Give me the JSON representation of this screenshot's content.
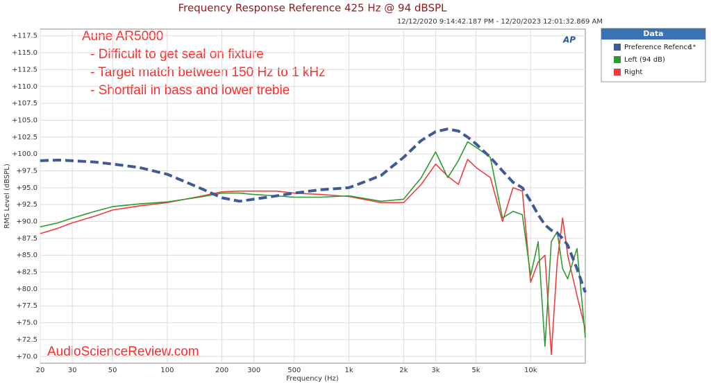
{
  "chart_data": {
    "type": "line",
    "title": "Frequency Response Reference 425 Hz @ 94 dBSPL",
    "subtitle": "12/12/2020 9:14:42.187 PM - 12/20/2023 12:01:32.869 AM",
    "x_label": "Frequency (Hz)",
    "y_label": "RMS Level (dBSPL)",
    "annotations": [
      "Aune AR5000",
      "- Difficult to get seal on fixture",
      "- Target match between 150 Hz to 1 kHz",
      "- Shortfall in bass and lower treble"
    ],
    "watermark": "AudioScienceReview.com",
    "logo": "AP",
    "legend_title": "Data",
    "legend": "outside-right",
    "log_x": true,
    "grid": true,
    "xlim": [
      20,
      20000
    ],
    "ylim": [
      69,
      118.5
    ],
    "xticks": [
      20,
      30,
      50,
      100,
      200,
      300,
      500,
      {
        "value": 1000,
        "label": "1k"
      },
      {
        "value": 2000,
        "label": "2k"
      },
      {
        "value": 3000,
        "label": "3k"
      },
      {
        "value": 5000,
        "label": "5k"
      },
      {
        "value": 10000,
        "label": "10k"
      }
    ],
    "yticks": [
      {
        "value": 70,
        "label": "+70.0"
      },
      {
        "value": 72.5,
        "label": "+72.5"
      },
      {
        "value": 75,
        "label": "+75.0"
      },
      {
        "value": 77.5,
        "label": "+77.5"
      },
      {
        "value": 80,
        "label": "+80.0"
      },
      {
        "value": 82.5,
        "label": "+82.5"
      },
      {
        "value": 85,
        "label": "+85.0"
      },
      {
        "value": 87.5,
        "label": "+87.5"
      },
      {
        "value": 90,
        "label": "+90.0"
      },
      {
        "value": 92.5,
        "label": "+92.5"
      },
      {
        "value": 95,
        "label": "+95.0"
      },
      {
        "value": 97.5,
        "label": "+97.5"
      },
      {
        "value": 100,
        "label": "+100.0"
      },
      {
        "value": 102.5,
        "label": "+102.5"
      },
      {
        "value": 105,
        "label": "+105.0"
      },
      {
        "value": 107.5,
        "label": "+107.5"
      },
      {
        "value": 110,
        "label": "+110.0"
      },
      {
        "value": 112.5,
        "label": "+112.5"
      },
      {
        "value": 115,
        "label": "+115.0"
      },
      {
        "value": 117.5,
        "label": "+117.5"
      }
    ],
    "x": [
      20,
      25,
      30,
      40,
      50,
      70,
      100,
      150,
      200,
      250,
      300,
      400,
      500,
      700,
      1000,
      1500,
      2000,
      2500,
      3000,
      3500,
      4000,
      4500,
      5000,
      6000,
      7000,
      8000,
      9000,
      10000,
      11000,
      12000,
      13000,
      14000,
      15000,
      16000,
      18000,
      20000
    ],
    "series": [
      {
        "name": "Preference Refence",
        "note": "1*",
        "color": "#3f5a96",
        "dash": true,
        "values": [
          99,
          99.1,
          99,
          98.8,
          98.5,
          98,
          97,
          95,
          93.5,
          93,
          93.3,
          93.8,
          94.2,
          94.7,
          95,
          96.8,
          99.5,
          102,
          103.3,
          103.7,
          103.4,
          102.5,
          101.5,
          99.5,
          97.5,
          95.8,
          95,
          93,
          91,
          89.5,
          88.7,
          88.3,
          87.5,
          86.5,
          83,
          79.5
        ]
      },
      {
        "name": "Left (94 dB)",
        "color": "#2e9a2e",
        "dash": false,
        "values": [
          89.2,
          89.8,
          90.5,
          91.5,
          92.2,
          92.6,
          92.9,
          93.6,
          94.2,
          94.2,
          94,
          93.8,
          93.6,
          93.6,
          93.8,
          93,
          93.3,
          96.5,
          100.3,
          96.5,
          99,
          101.8,
          101,
          99.5,
          90.5,
          91.5,
          91,
          82,
          87,
          71.5,
          87,
          88.5,
          83,
          81.5,
          86,
          72.8
        ]
      },
      {
        "name": "Right",
        "color": "#f03c3c",
        "dash": false,
        "values": [
          88.2,
          89,
          89.8,
          90.8,
          91.7,
          92.3,
          92.8,
          93.7,
          94.4,
          94.5,
          94.5,
          94.5,
          94.2,
          94,
          93.7,
          92.8,
          92.8,
          95.5,
          98.5,
          96.7,
          95.5,
          99.2,
          98,
          96.5,
          90,
          95,
          94.5,
          81,
          84,
          85,
          70.3,
          84,
          90.5,
          85,
          79,
          74
        ]
      }
    ]
  }
}
